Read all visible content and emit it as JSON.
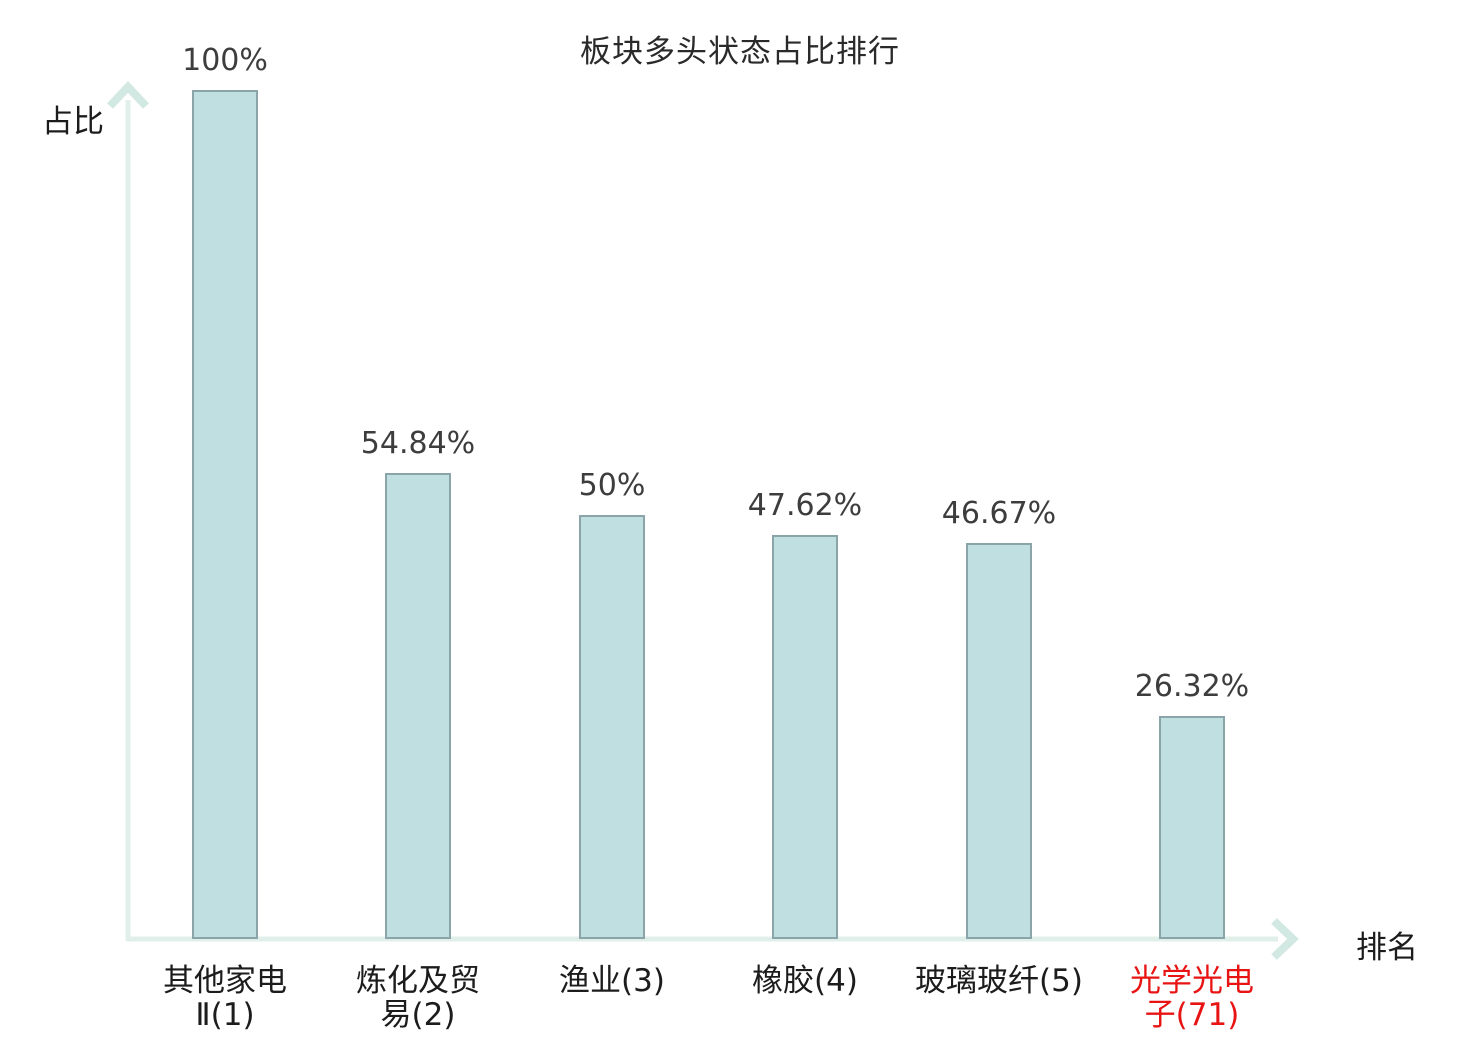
{
  "chart_data": {
    "type": "bar",
    "title": "板块多头状态占比排行",
    "ylabel": "占比",
    "xlabel": "排名",
    "categories": [
      "其他家电Ⅱ(1)",
      "炼化及贸易(2)",
      "渔业(3)",
      "橡胶(4)",
      "玻璃玻纤(5)",
      "光学光电子(71)"
    ],
    "category_lines": [
      [
        "其他家电",
        "Ⅱ(1)"
      ],
      [
        "炼化及贸",
        "易(2)"
      ],
      [
        "渔业(3)"
      ],
      [
        "橡胶(4)"
      ],
      [
        "玻璃玻纤(5)"
      ],
      [
        "光学光电",
        "子(71)"
      ]
    ],
    "values": [
      100,
      54.84,
      50,
      47.62,
      46.67,
      26.32
    ],
    "value_labels": [
      "100%",
      "54.84%",
      "50%",
      "47.62%",
      "46.67%",
      "26.32%"
    ],
    "highlighted_category_index": 5,
    "ylim": [
      0,
      100
    ],
    "grid": false,
    "legend": null,
    "colors": {
      "bar_fill": "#bfdfe1",
      "bar_border": "#8aa4a9",
      "axis": "#e0efea",
      "arrow": "#d2e8e2",
      "value_text": "#3d3d3d",
      "category_text": "#1c1c1c",
      "highlight_text": "#e81414",
      "title_text": "#2a2a2a"
    }
  }
}
